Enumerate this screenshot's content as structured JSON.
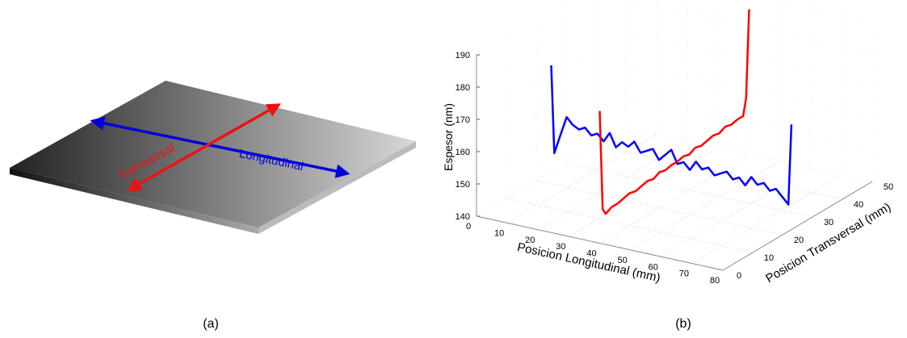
{
  "panel_a": {
    "labels": [
      "Transversal",
      "Longitudinal"
    ],
    "caption": "(a)"
  },
  "chart_data": {
    "type": "line3d",
    "caption": "(b)",
    "xlabel": "Posicion Longitudinal (mm)",
    "ylabel": "Posicion Transversal (mm)",
    "zlabel": "Espesor (nm)",
    "xlim": [
      0,
      80
    ],
    "ylim": [
      0,
      50
    ],
    "zlim": [
      140,
      190
    ],
    "xticks": [
      0,
      10,
      20,
      30,
      40,
      50,
      60,
      70,
      80
    ],
    "yticks": [
      0,
      10,
      20,
      30,
      40,
      50
    ],
    "zticks": [
      140,
      150,
      160,
      170,
      180,
      190
    ],
    "grid": true,
    "series": [
      {
        "color": "#0000ff",
        "y": 25,
        "x": [
          0,
          1,
          3,
          5,
          7,
          9,
          11,
          13,
          15,
          17,
          19,
          21,
          23,
          25,
          27,
          29,
          31,
          33,
          35,
          37,
          39,
          41,
          43,
          45,
          47,
          49,
          51,
          53,
          55,
          57,
          59,
          61,
          63,
          65,
          67,
          69,
          71,
          73,
          75,
          76,
          77,
          78
        ],
        "values": [
          173,
          146,
          152,
          158,
          156,
          155,
          156,
          154,
          155,
          153,
          156,
          152,
          154,
          153,
          155,
          152,
          153,
          154,
          151,
          153,
          155,
          151,
          152,
          150,
          153,
          151,
          152,
          150,
          151,
          152,
          150,
          151,
          149,
          152,
          150,
          151,
          149,
          150,
          148,
          147,
          146,
          171
        ]
      },
      {
        "color": "#ff0000",
        "x": 40,
        "y": [
          0,
          1,
          2,
          4,
          6,
          8,
          10,
          12,
          14,
          16,
          18,
          20,
          22,
          24,
          26,
          28,
          30,
          32,
          34,
          36,
          38,
          40,
          42,
          44,
          46,
          48,
          49,
          50
        ],
        "values": [
          181,
          150,
          148,
          149,
          149,
          149.5,
          150,
          149.5,
          150,
          150.5,
          150,
          151,
          150.5,
          151,
          151,
          151.5,
          151,
          152,
          151.5,
          152,
          152.5,
          152,
          153,
          152.5,
          153,
          153,
          158,
          185
        ]
      }
    ]
  }
}
